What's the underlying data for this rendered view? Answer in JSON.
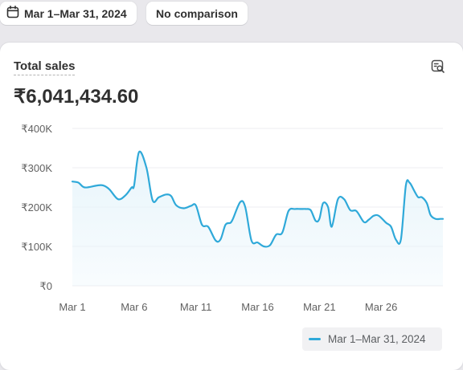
{
  "toolbar": {
    "date_range_label": "Mar 1–Mar 31, 2024",
    "comparison_label": "No comparison",
    "calendar_icon": "calendar-icon"
  },
  "card": {
    "title": "Total sales",
    "value": "₹6,041,434.60",
    "action_icon": "chart-search-icon"
  },
  "colors": {
    "line": "#2fa9d9",
    "area": "#e8f5fb",
    "grid": "#ececf0"
  },
  "chart_data": {
    "type": "area",
    "y_tick_labels": [
      "₹0",
      "₹100K",
      "₹200K",
      "₹300K",
      "₹400K"
    ],
    "y_ticks": [
      0,
      100000,
      200000,
      300000,
      400000
    ],
    "ylim": [
      0,
      400000
    ],
    "x_tick_labels": [
      "Mar 1",
      "Mar 6",
      "Mar 11",
      "Mar 16",
      "Mar 21",
      "Mar 26"
    ],
    "x_tick_days": [
      1,
      6,
      11,
      16,
      21,
      26
    ],
    "xlim": [
      1,
      31
    ],
    "grid": true,
    "legend_position": "bottom-right",
    "series": [
      {
        "name": "Mar 1–Mar 31, 2024",
        "x": [
          1,
          1.5,
          2,
          3,
          3.5,
          4,
          4.7,
          5.3,
          5.8,
          6,
          6.4,
          7,
          7.5,
          8,
          8.6,
          9,
          9.4,
          10,
          10.6,
          11,
          11.5,
          12,
          12.6,
          13,
          13.4,
          13.8,
          14,
          14.6,
          15,
          15.5,
          16,
          16.5,
          17,
          17.5,
          18,
          18.5,
          19,
          19.5,
          19.9,
          20.3,
          20.7,
          21,
          21.3,
          21.7,
          22,
          22.5,
          23,
          23.5,
          24,
          24.6,
          25,
          25.4,
          25.8,
          26.4,
          26.8,
          27.2,
          27.6,
          28,
          28.3,
          28.7,
          29,
          29.3,
          29.7,
          30,
          30.4,
          30.8,
          31
        ],
        "y": [
          265000,
          262000,
          250000,
          255000,
          255000,
          245000,
          220000,
          230000,
          250000,
          255000,
          340000,
          300000,
          217000,
          225000,
          232000,
          228000,
          205000,
          197000,
          203000,
          204000,
          155000,
          150000,
          115000,
          118000,
          155000,
          160000,
          170000,
          213000,
          200000,
          115000,
          110000,
          100000,
          103000,
          130000,
          135000,
          190000,
          195000,
          195000,
          195000,
          192000,
          165000,
          170000,
          210000,
          200000,
          150000,
          220000,
          220000,
          192000,
          190000,
          162000,
          168000,
          178000,
          178000,
          160000,
          150000,
          117000,
          118000,
          255000,
          262000,
          240000,
          225000,
          225000,
          210000,
          180000,
          170000,
          170000,
          170000
        ]
      }
    ]
  }
}
